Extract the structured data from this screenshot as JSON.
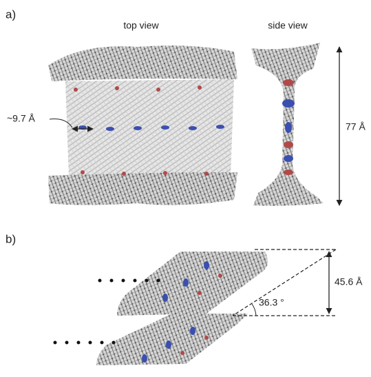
{
  "panel_a": {
    "label": "a)",
    "top_view_title": "top view",
    "side_view_title": "side view",
    "spacing_label": "~9.7 Å",
    "height_label": "77 Å"
  },
  "panel_b": {
    "label": "b)",
    "height_label": "45.6 Å",
    "angle_label": "36.3 °"
  }
}
